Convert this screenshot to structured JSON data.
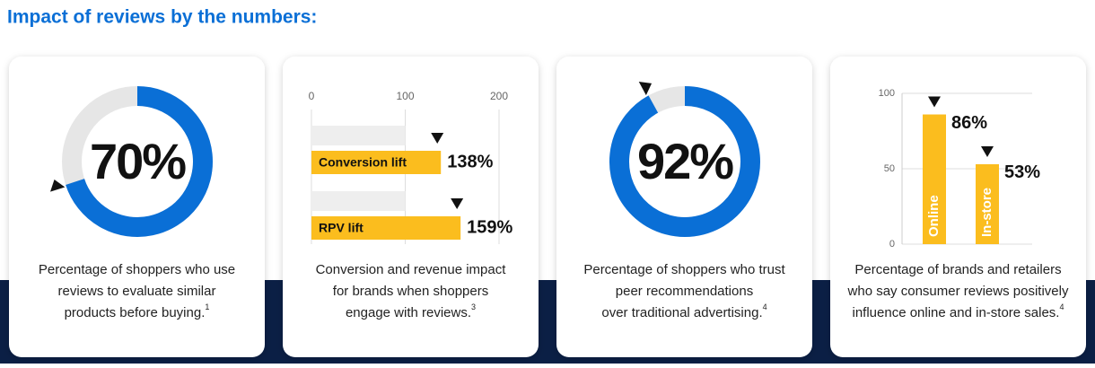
{
  "title": "Impact of reviews by the numbers:",
  "chart_data": [
    {
      "type": "donut",
      "values": [
        70
      ],
      "value_labels": [
        "70%"
      ],
      "color": "#0a6fd6",
      "caption": [
        "Percentage of shoppers who use",
        "reviews to evaluate similar",
        "products before buying."
      ],
      "footnote": "1"
    },
    {
      "type": "hbar",
      "categories": [
        "Conversion  lift",
        "RPV lift"
      ],
      "values": [
        138,
        159
      ],
      "value_labels": [
        "138%",
        "159%"
      ],
      "color": "#fbbd1e",
      "xlim": [
        0,
        200
      ],
      "xticks": [
        0,
        100,
        200
      ],
      "grid": true,
      "caption": [
        "Conversion and revenue impact",
        "for brands when shoppers",
        "engage with reviews."
      ],
      "footnote": "3"
    },
    {
      "type": "donut",
      "values": [
        92
      ],
      "value_labels": [
        "92%"
      ],
      "color": "#0a6fd6",
      "caption": [
        "Percentage of shoppers who trust",
        "peer recommendations",
        "over traditional advertising."
      ],
      "footnote": "4"
    },
    {
      "type": "vbar",
      "categories": [
        "Online",
        "In-store"
      ],
      "values": [
        86,
        53
      ],
      "value_labels": [
        "86%",
        "53%"
      ],
      "color": "#fbbd1e",
      "ylim": [
        0,
        100
      ],
      "yticks": [
        0,
        50,
        100
      ],
      "grid": true,
      "caption": [
        "Percentage of brands and retailers",
        "who say consumer reviews positively",
        "influence online and in-store sales."
      ],
      "footnote": "4"
    }
  ]
}
